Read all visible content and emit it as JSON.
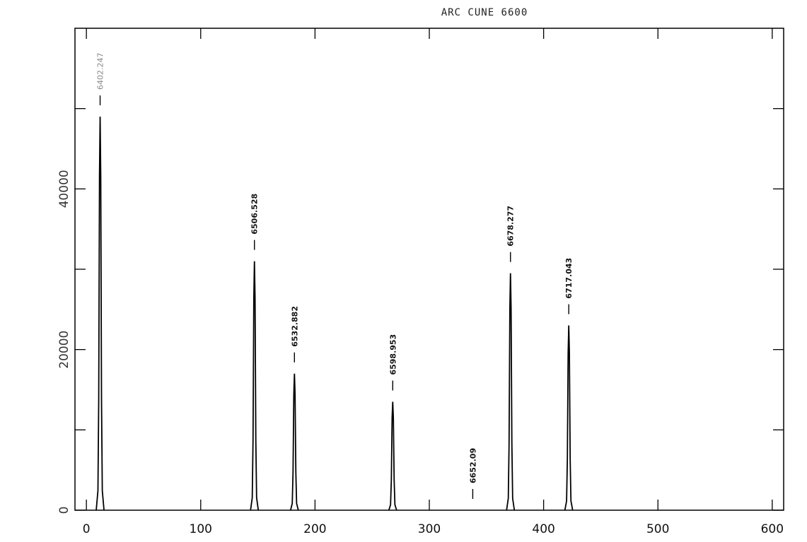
{
  "chart_data": {
    "type": "line",
    "title": "ARC CUNE 6600",
    "ylabel": "",
    "xlim": [
      -10,
      610
    ],
    "ylim": [
      0,
      60000
    ],
    "x_ticks": [
      0,
      100,
      200,
      300,
      400,
      500,
      600
    ],
    "x_tick_labels": [
      "0",
      "100",
      "200",
      "300",
      "400",
      "500",
      "600"
    ],
    "y_ticks": [
      0,
      20000,
      40000
    ],
    "y_tick_labels": [
      "0",
      "20000",
      "40000"
    ],
    "grid": false,
    "peaks": [
      {
        "x": 12,
        "height": 49000,
        "label": "6402.247",
        "label_faint": true
      },
      {
        "x": 147,
        "height": 31000,
        "label": "6506.528"
      },
      {
        "x": 182,
        "height": 17000,
        "label": "6532.882"
      },
      {
        "x": 268,
        "height": 13500,
        "label": "6598.953"
      },
      {
        "x": 338,
        "height": 0,
        "label": "6652.09"
      },
      {
        "x": 371,
        "height": 29500,
        "label": "6678.277"
      },
      {
        "x": 422,
        "height": 23000,
        "label": "6717.043"
      }
    ]
  }
}
